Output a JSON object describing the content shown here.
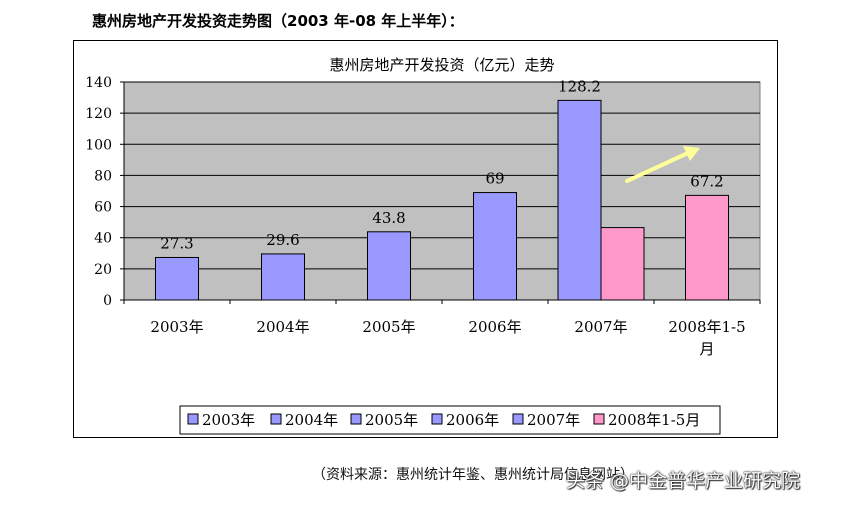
{
  "heading": "惠州房地产开发投资走势图（2003 年-08 年上半年）：",
  "source_note": "（资料来源：惠州统计年鉴、惠州统计局信息网站）",
  "watermark": "头条 @中金普华产业研究院",
  "colors": {
    "plot_bg": "#c0c0c0",
    "bar_blue": "#9999ff",
    "bar_pink": "#ff99cc",
    "arrow": "#ffff99"
  },
  "chart_data": {
    "type": "bar",
    "title": "惠州房地产开发投资（亿元）走势",
    "categories": [
      "2003年",
      "2004年",
      "2005年",
      "2006年",
      "2007年",
      "2008年1-5月"
    ],
    "series": [
      {
        "name": "2003年",
        "color": "#9999ff",
        "values": [
          27.3,
          null,
          null,
          null,
          null,
          null
        ]
      },
      {
        "name": "2004年",
        "color": "#9999ff",
        "values": [
          null,
          29.6,
          null,
          null,
          null,
          null
        ]
      },
      {
        "name": "2005年",
        "color": "#9999ff",
        "values": [
          null,
          null,
          43.8,
          null,
          null,
          null
        ]
      },
      {
        "name": "2006年",
        "color": "#9999ff",
        "values": [
          null,
          null,
          null,
          69,
          null,
          null
        ]
      },
      {
        "name": "2007年",
        "color": "#9999ff",
        "values": [
          null,
          null,
          null,
          null,
          128.2,
          null
        ]
      },
      {
        "name": "2008年1-5月",
        "color": "#ff99cc",
        "values": [
          null,
          null,
          null,
          null,
          46.5,
          67.2
        ]
      }
    ],
    "data_labels": [
      "27.3",
      "29.6",
      "43.8",
      "69",
      "128.2",
      "67.2"
    ],
    "y_ticks": [
      0,
      20,
      40,
      60,
      80,
      100,
      120,
      140
    ],
    "ylim": [
      0,
      140
    ],
    "grid": true,
    "legend_position": "bottom",
    "annotation": "upward-trend-arrow"
  }
}
